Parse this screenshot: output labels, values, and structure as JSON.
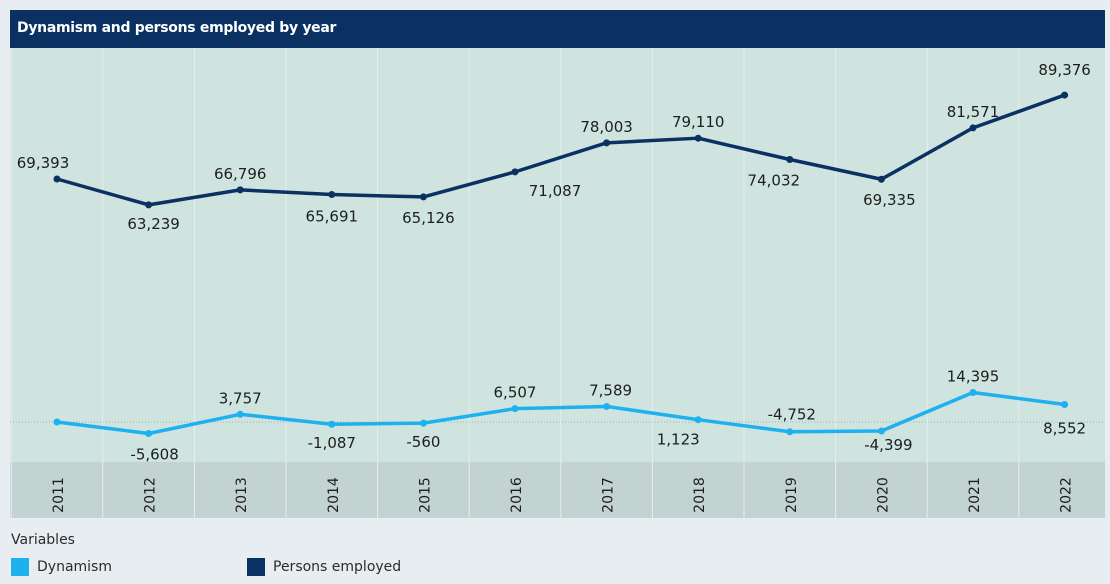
{
  "header": {
    "title": "Dynamism and persons employed by year"
  },
  "legend": {
    "title": "Variables",
    "items": [
      {
        "label": "Dynamism",
        "color": "#1eb1f0"
      },
      {
        "label": "Persons employed",
        "color": "#0b3163"
      }
    ]
  },
  "chart_data": {
    "type": "line",
    "title": "Dynamism and persons employed by year",
    "x": [
      "2011",
      "2012",
      "2013",
      "2014",
      "2015",
      "2016",
      "2017",
      "2018",
      "2019",
      "2020",
      "2021",
      "2022"
    ],
    "series": [
      {
        "name": "Persons employed",
        "color": "#0b3163",
        "values": [
          69393,
          63239,
          66796,
          65691,
          65126,
          71087,
          78003,
          79110,
          74032,
          69335,
          81571,
          89376
        ],
        "labels": [
          "69,393",
          "63,239",
          "66,796",
          "65,691",
          "65,126",
          "71,087",
          "78,003",
          "79,110",
          "74,032",
          "69,335",
          "81,571",
          "89,376"
        ]
      },
      {
        "name": "Dynamism",
        "color": "#1eb1f0",
        "values": [
          null,
          -5608,
          3757,
          -1087,
          -560,
          6507,
          7589,
          1123,
          -4752,
          -4399,
          14395,
          8552
        ],
        "display_values": [
          0,
          -5608,
          3757,
          -1087,
          -560,
          6507,
          7589,
          1123,
          -4752,
          -4399,
          14395,
          8552
        ],
        "labels": [
          "",
          "-5,608",
          "3,757",
          "-1,087",
          "-560",
          "6,507",
          "7,589",
          "1,123",
          "-4,752",
          "-4,399",
          "14,395",
          "8,552"
        ]
      }
    ],
    "xlabel": "",
    "ylabel": "",
    "grid": true,
    "legend_position": "bottom-left",
    "colors": {
      "plot_bg": "#cfe3df",
      "axis_bg": "#c3d3d1",
      "zero_line": "#9fb5b1"
    }
  }
}
